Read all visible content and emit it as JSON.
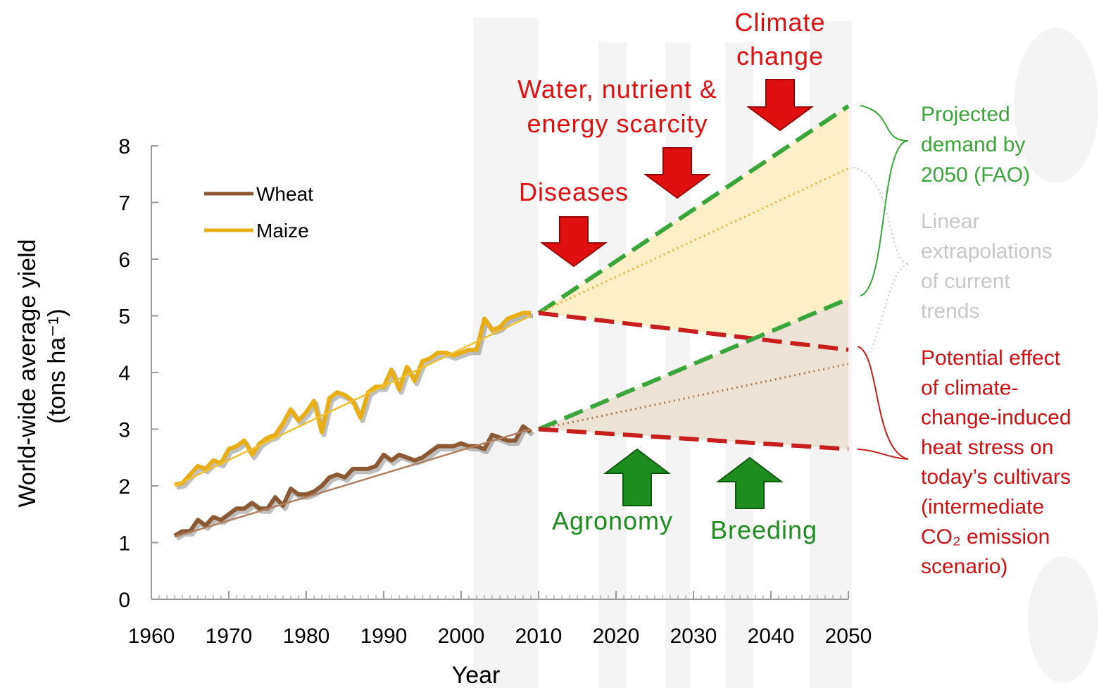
{
  "chart_data": {
    "type": "line",
    "ylabel": [
      "World-wide average yield",
      "(tons ha⁻¹)"
    ],
    "xlabel": "Year",
    "xlim": [
      1960,
      2050
    ],
    "xticks": [
      1960,
      1970,
      1980,
      1990,
      2000,
      2010,
      2020,
      2030,
      2040,
      2050
    ],
    "ylim": [
      0,
      8
    ],
    "yticks": [
      0,
      1,
      2,
      3,
      4,
      5,
      6,
      7,
      8
    ],
    "legend": "upper left",
    "series": [
      {
        "name": "Wheat",
        "color": "#8b5a34",
        "x": [
          1963,
          1964,
          1965,
          1966,
          1967,
          1968,
          1969,
          1970,
          1971,
          1972,
          1973,
          1974,
          1975,
          1976,
          1977,
          1978,
          1979,
          1980,
          1981,
          1982,
          1983,
          1984,
          1985,
          1986,
          1987,
          1988,
          1989,
          1990,
          1991,
          1992,
          1993,
          1994,
          1995,
          1996,
          1997,
          1998,
          1999,
          2000,
          2001,
          2002,
          2003,
          2004,
          2005,
          2006,
          2007,
          2008,
          2009
        ],
        "values": [
          1.12,
          1.2,
          1.2,
          1.4,
          1.3,
          1.45,
          1.4,
          1.5,
          1.6,
          1.6,
          1.7,
          1.6,
          1.6,
          1.8,
          1.65,
          1.95,
          1.85,
          1.85,
          1.9,
          2.0,
          2.15,
          2.2,
          2.15,
          2.3,
          2.3,
          2.3,
          2.35,
          2.55,
          2.45,
          2.55,
          2.5,
          2.45,
          2.5,
          2.6,
          2.7,
          2.7,
          2.7,
          2.75,
          2.7,
          2.7,
          2.65,
          2.9,
          2.85,
          2.8,
          2.8,
          3.05,
          2.95
        ]
      },
      {
        "name": "Maize",
        "color": "#e8ae14",
        "x": [
          1963,
          1964,
          1965,
          1966,
          1967,
          1968,
          1969,
          1970,
          1971,
          1972,
          1973,
          1974,
          1975,
          1976,
          1977,
          1978,
          1979,
          1980,
          1981,
          1982,
          1983,
          1984,
          1985,
          1986,
          1987,
          1988,
          1989,
          1990,
          1991,
          1992,
          1993,
          1994,
          1995,
          1996,
          1997,
          1998,
          1999,
          2000,
          2001,
          2002,
          2003,
          2004,
          2005,
          2006,
          2007,
          2008,
          2009
        ],
        "values": [
          2.02,
          2.05,
          2.2,
          2.35,
          2.3,
          2.45,
          2.4,
          2.65,
          2.7,
          2.8,
          2.55,
          2.75,
          2.85,
          2.9,
          3.1,
          3.35,
          3.15,
          3.3,
          3.5,
          2.95,
          3.55,
          3.65,
          3.6,
          3.5,
          3.2,
          3.65,
          3.75,
          3.75,
          4.05,
          3.7,
          4.1,
          3.85,
          4.2,
          4.25,
          4.35,
          4.35,
          4.3,
          4.35,
          4.4,
          4.4,
          4.95,
          4.75,
          4.8,
          4.95,
          5.0,
          5.05,
          5.05
        ]
      }
    ],
    "trends": [
      {
        "color": "#b08060",
        "x": [
          1963,
          2009
        ],
        "values": [
          1.1,
          3.0
        ]
      },
      {
        "color": "#f0c030",
        "x": [
          1963,
          2009
        ],
        "values": [
          2.0,
          5.0
        ]
      }
    ],
    "projections": [
      {
        "fill": "#fdf0c6",
        "lines": [
          {
            "color": "#3aa53a",
            "dash": "dashed",
            "x": [
              2010,
              2050
            ],
            "values": [
              5.05,
              8.7
            ]
          },
          {
            "color": "#f0b030",
            "dash": "dotted",
            "x": [
              2010,
              2050
            ],
            "values": [
              5.05,
              7.6
            ]
          },
          {
            "color": "#c81e1e",
            "dash": "dashed",
            "x": [
              2010,
              2050
            ],
            "values": [
              5.05,
              4.4
            ]
          }
        ]
      },
      {
        "fill": "#ede2d6",
        "lines": [
          {
            "color": "#3aa53a",
            "dash": "dashed",
            "x": [
              2010,
              2050
            ],
            "values": [
              3.0,
              5.3
            ]
          },
          {
            "color": "#b07a50",
            "dash": "dotted",
            "x": [
              2010,
              2050
            ],
            "values": [
              3.0,
              4.15
            ]
          },
          {
            "color": "#c81e1e",
            "dash": "dashed",
            "x": [
              2010,
              2050
            ],
            "values": [
              3.0,
              2.65
            ]
          }
        ]
      }
    ],
    "annotations": [
      {
        "lines": [
          "Climate",
          "change"
        ],
        "color": "#e01010"
      },
      {
        "lines": [
          "Water, nutrient &",
          "energy scarcity"
        ],
        "color": "#e01010"
      },
      {
        "lines": [
          "Diseases"
        ],
        "color": "#e01010"
      },
      {
        "lines": [
          "Agronomy"
        ],
        "color": "#1e8c1e"
      },
      {
        "lines": [
          "Breeding"
        ],
        "color": "#1e8c1e"
      },
      {
        "lines": [
          "Projected",
          "demand by",
          "2050 (FAO)"
        ],
        "color": "#3aa53a"
      },
      {
        "lines": [
          "Linear",
          "extrapolations",
          "of current",
          "trends"
        ],
        "color": "#c8c8c8"
      },
      {
        "lines": [
          "Potential effect",
          "of climate-",
          "change-induced",
          "heat stress on",
          "today’s cultivars",
          "(intermediate",
          "CO₂ emission",
          "scenario)"
        ],
        "color": "#d01010"
      }
    ]
  }
}
